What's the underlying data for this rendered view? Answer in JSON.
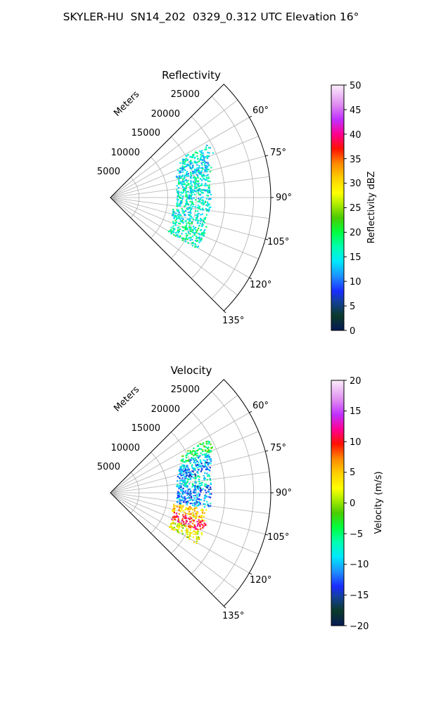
{
  "title": "SKYLER-HU  SN14_202  0329_0.312 UTC Elevation 16°",
  "chart_data": [
    {
      "type": "heatmap",
      "title": "Reflectivity",
      "radial_label": "Meters",
      "radial_ticks": [
        "5000",
        "10000",
        "15000",
        "20000",
        "25000"
      ],
      "angle_ticks": [
        "60°",
        "75°",
        "90°",
        "105°",
        "120°",
        "135°"
      ],
      "theta_range_deg": [
        45,
        135
      ],
      "r_range_m": [
        0,
        28000
      ],
      "colorbar": {
        "label": "Reflectivity dBZ",
        "min": 0,
        "max": 50,
        "ticks": [
          "0",
          "5",
          "10",
          "15",
          "20",
          "25",
          "30",
          "35",
          "40",
          "45",
          "50"
        ]
      },
      "cells": [
        {
          "angle_deg": 64,
          "range_m": 16500,
          "value": 15
        },
        {
          "angle_deg": 70,
          "range_m": 15500,
          "value": 14
        },
        {
          "angle_deg": 75,
          "range_m": 15000,
          "value": 15
        },
        {
          "angle_deg": 82,
          "range_m": 14500,
          "value": 16
        },
        {
          "angle_deg": 88,
          "range_m": 14500,
          "value": 15
        },
        {
          "angle_deg": 95,
          "range_m": 14500,
          "value": 16
        },
        {
          "angle_deg": 103,
          "range_m": 14000,
          "value": 15
        },
        {
          "angle_deg": 110,
          "range_m": 14500,
          "value": 17
        },
        {
          "angle_deg": 117,
          "range_m": 14500,
          "value": 16
        }
      ]
    },
    {
      "type": "heatmap",
      "title": "Velocity",
      "radial_label": "Meters",
      "radial_ticks": [
        "5000",
        "10000",
        "15000",
        "20000",
        "25000"
      ],
      "angle_ticks": [
        "60°",
        "75°",
        "90°",
        "105°",
        "120°",
        "135°"
      ],
      "theta_range_deg": [
        45,
        135
      ],
      "r_range_m": [
        0,
        28000
      ],
      "colorbar": {
        "label": "Velocity (m/s)",
        "min": -20,
        "max": 20,
        "ticks": [
          "−20",
          "−15",
          "−10",
          "−5",
          "0",
          "5",
          "10",
          "15",
          "20"
        ]
      },
      "cells": [
        {
          "angle_deg": 64,
          "range_m": 16500,
          "value": -4
        },
        {
          "angle_deg": 70,
          "range_m": 15500,
          "value": -9
        },
        {
          "angle_deg": 75,
          "range_m": 15000,
          "value": -12
        },
        {
          "angle_deg": 82,
          "range_m": 14500,
          "value": -8
        },
        {
          "angle_deg": 88,
          "range_m": 14500,
          "value": -12
        },
        {
          "angle_deg": 95,
          "range_m": 14500,
          "value": -11
        },
        {
          "angle_deg": 103,
          "range_m": 14000,
          "value": 5
        },
        {
          "angle_deg": 110,
          "range_m": 14500,
          "value": 10
        },
        {
          "angle_deg": 117,
          "range_m": 14500,
          "value": 2
        }
      ]
    }
  ]
}
